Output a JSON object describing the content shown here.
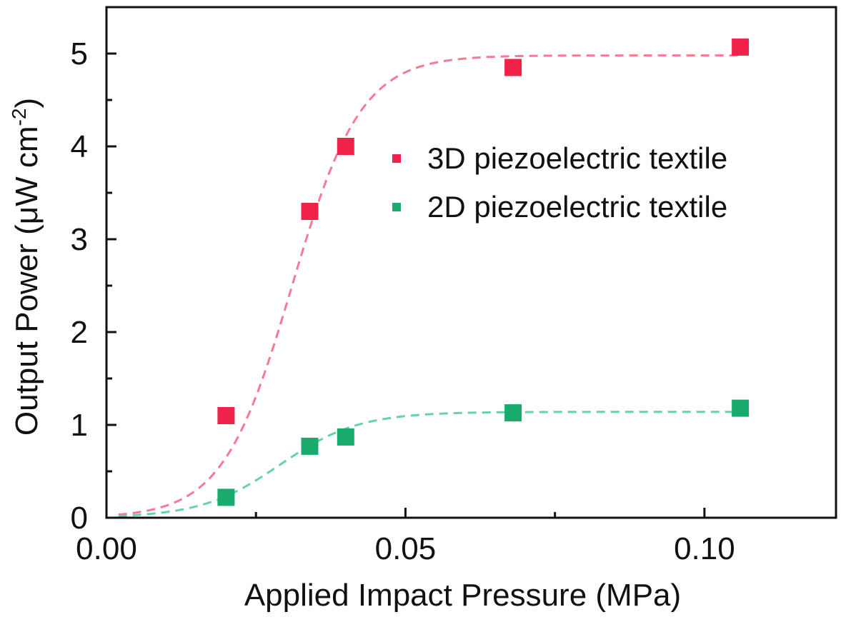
{
  "chart_data": {
    "type": "scatter",
    "xlabel": "Applied Impact Pressure (MPa)",
    "ylabel": {
      "base": "Output Power (μW cm",
      "sup": "-2",
      "close": ")"
    },
    "xlim": [
      0,
      0.122
    ],
    "ylim": [
      0,
      5.5
    ],
    "xticks": [
      0.0,
      0.05,
      0.1
    ],
    "xtick_labels": [
      "0.00",
      "0.05",
      "0.10"
    ],
    "yticks": [
      0,
      1,
      2,
      3,
      4,
      5
    ],
    "ytick_labels": [
      "0",
      "1",
      "2",
      "3",
      "4",
      "5"
    ],
    "grid": false,
    "legend_position": "right-middle",
    "series": [
      {
        "name": "3D piezoelectric textile",
        "color": "#f0224a",
        "fit_color": "#f77a92",
        "x": [
          0.02,
          0.034,
          0.04,
          0.068,
          0.106
        ],
        "y": [
          1.1,
          3.3,
          4.0,
          4.85,
          5.07
        ],
        "fit": {
          "type": "logistic",
          "max": 4.98,
          "x0": 0.031,
          "k": 0.0058
        }
      },
      {
        "name": "2D piezoelectric textile",
        "color": "#19ab6e",
        "fit_color": "#66d3a6",
        "x": [
          0.02,
          0.034,
          0.04,
          0.068,
          0.106
        ],
        "y": [
          0.22,
          0.77,
          0.87,
          1.13,
          1.18
        ],
        "fit": {
          "type": "logistic",
          "max": 1.14,
          "x0": 0.029,
          "k": 0.0066
        }
      }
    ]
  }
}
